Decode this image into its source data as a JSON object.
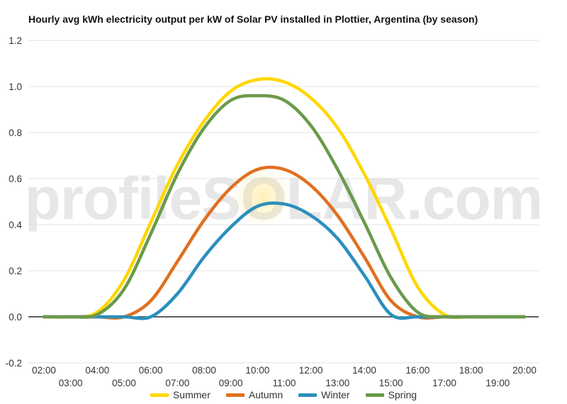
{
  "chart_data": {
    "type": "line",
    "title": "Hourly avg kWh electricity output per kW of Solar PV installed in Plottier, Argentina (by season)",
    "xlabel": "",
    "ylabel": "",
    "x": [
      "02:00",
      "03:00",
      "04:00",
      "05:00",
      "06:00",
      "07:00",
      "08:00",
      "09:00",
      "10:00",
      "11:00",
      "12:00",
      "13:00",
      "14:00",
      "15:00",
      "16:00",
      "17:00",
      "18:00",
      "19:00",
      "20:00"
    ],
    "ylim": [
      -0.2,
      1.2
    ],
    "yticks": [
      "-0.2",
      "0.0",
      "0.2",
      "0.4",
      "0.6",
      "0.8",
      "1.0",
      "1.2"
    ],
    "grid": true,
    "legend_position": "bottom",
    "series": [
      {
        "name": "Summer",
        "color": "#ffd700",
        "values": [
          0.0,
          0.0,
          0.02,
          0.16,
          0.41,
          0.66,
          0.85,
          0.98,
          1.03,
          1.02,
          0.95,
          0.82,
          0.62,
          0.38,
          0.13,
          0.01,
          0.0,
          0.0,
          0.0
        ]
      },
      {
        "name": "Autumn",
        "color": "#e07020",
        "values": [
          0.0,
          0.0,
          0.0,
          0.0,
          0.07,
          0.24,
          0.42,
          0.56,
          0.64,
          0.64,
          0.57,
          0.44,
          0.26,
          0.07,
          0.0,
          0.0,
          0.0,
          0.0,
          0.0
        ]
      },
      {
        "name": "Winter",
        "color": "#2a8fbd",
        "values": [
          0.0,
          0.0,
          0.0,
          0.0,
          0.0,
          0.1,
          0.26,
          0.39,
          0.48,
          0.49,
          0.44,
          0.34,
          0.18,
          0.01,
          0.0,
          0.0,
          0.0,
          0.0,
          0.0
        ]
      },
      {
        "name": "Spring",
        "color": "#6b9a4b",
        "values": [
          0.0,
          0.0,
          0.01,
          0.12,
          0.36,
          0.62,
          0.82,
          0.94,
          0.96,
          0.94,
          0.83,
          0.64,
          0.41,
          0.17,
          0.02,
          0.0,
          0.0,
          0.0,
          0.0
        ]
      }
    ]
  },
  "watermark": "profileSOLAR.com",
  "colors": {
    "zero_line": "#000000",
    "grid": "#e0e0e0"
  }
}
